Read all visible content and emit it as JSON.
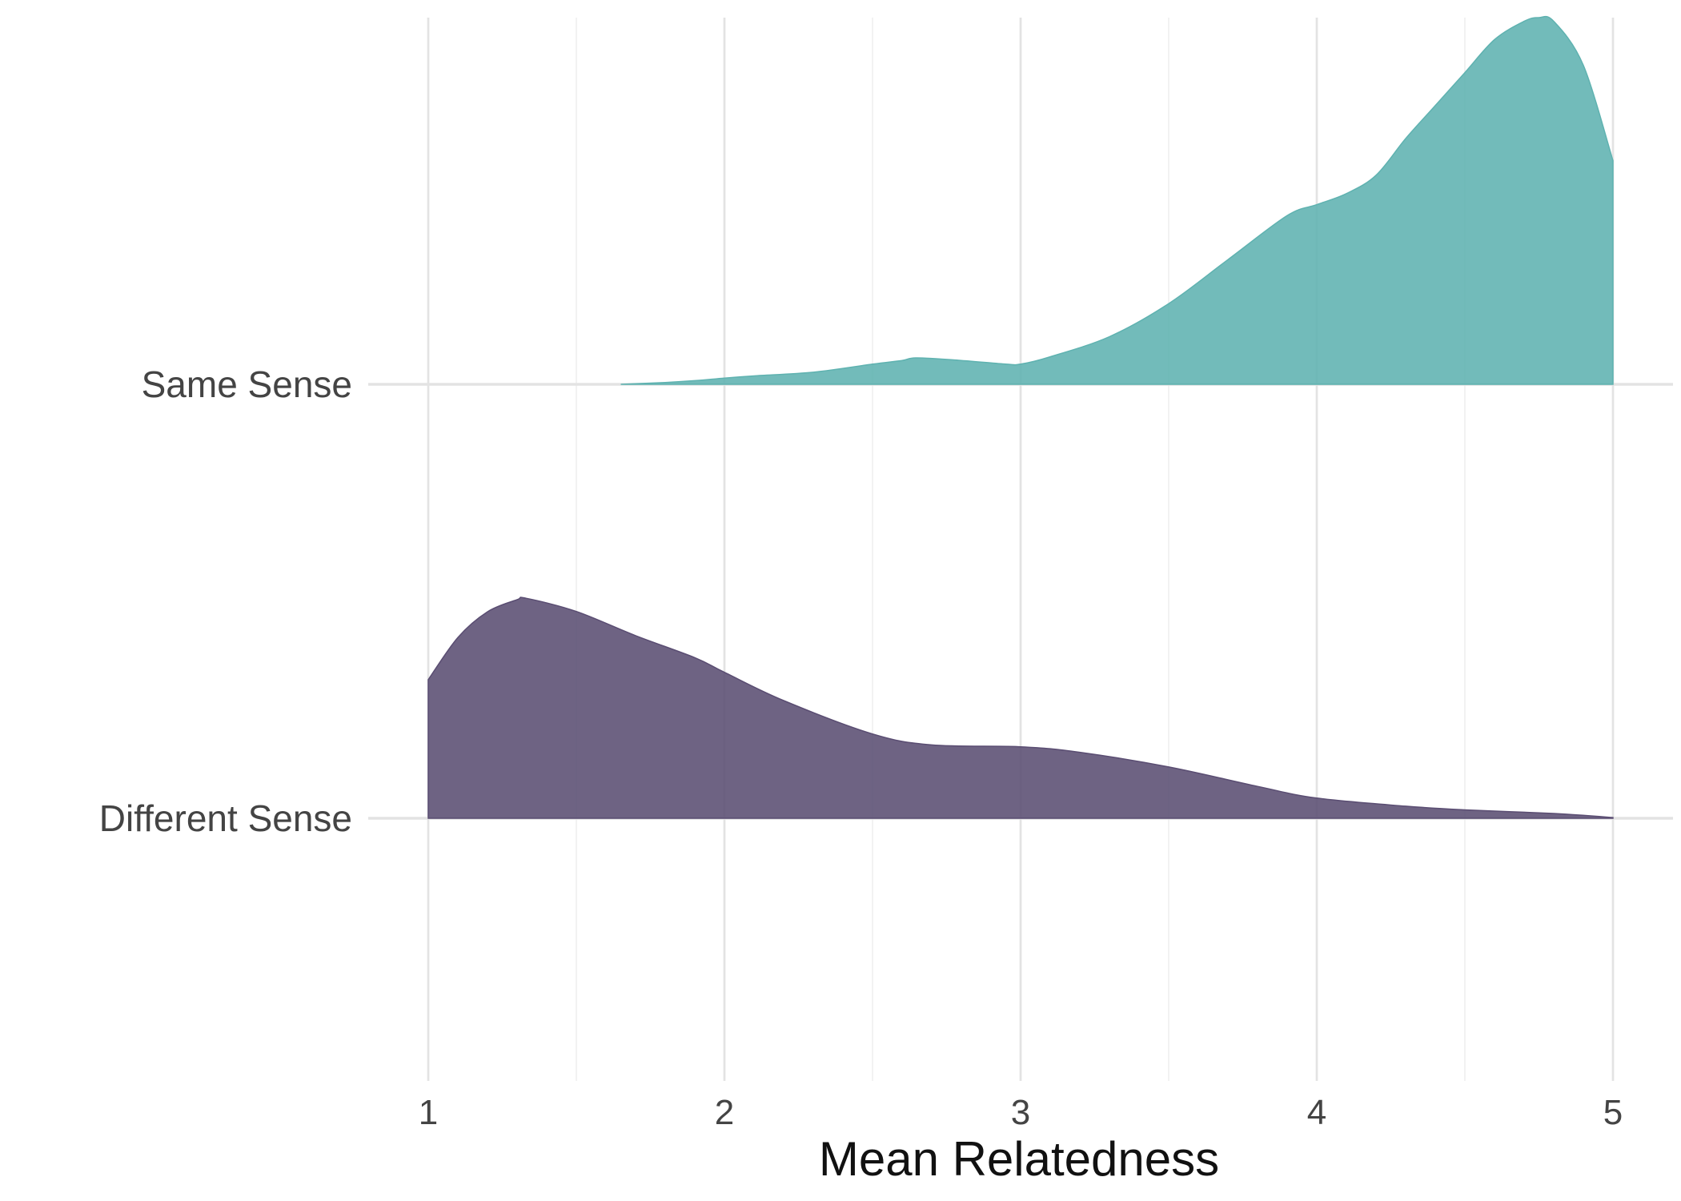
{
  "chart_data": {
    "type": "area",
    "title": "",
    "xlabel": "Mean Relatedness",
    "ylabel": "",
    "xlim": [
      1,
      5
    ],
    "x_ticks": [
      "1",
      "2",
      "3",
      "4",
      "5"
    ],
    "grid": true,
    "legend": "none",
    "series": [
      {
        "name": "Same Sense",
        "color": "#5FB2B0",
        "density_max_relative": 1.0,
        "x": [
          1.65,
          1.8,
          1.9,
          2.0,
          2.1,
          2.3,
          2.5,
          2.6,
          2.65,
          2.8,
          2.95,
          3.0,
          3.1,
          3.3,
          3.5,
          3.7,
          3.9,
          4.0,
          4.1,
          4.2,
          4.3,
          4.4,
          4.5,
          4.6,
          4.7,
          4.75,
          4.8,
          4.9,
          5.0
        ],
        "values": [
          0.0,
          0.005,
          0.01,
          0.017,
          0.023,
          0.033,
          0.055,
          0.065,
          0.072,
          0.065,
          0.055,
          0.055,
          0.075,
          0.13,
          0.22,
          0.34,
          0.46,
          0.49,
          0.52,
          0.57,
          0.67,
          0.76,
          0.85,
          0.94,
          0.99,
          1.0,
          0.99,
          0.87,
          0.61
        ]
      },
      {
        "name": "Different Sense",
        "color": "#5A4D72",
        "density_max_relative": 0.6,
        "x": [
          1.0,
          1.1,
          1.2,
          1.3,
          1.33,
          1.5,
          1.7,
          1.9,
          2.0,
          2.2,
          2.5,
          2.7,
          3.0,
          3.2,
          3.5,
          3.8,
          4.0,
          4.3,
          4.5,
          4.8,
          5.0
        ],
        "values": [
          0.378,
          0.493,
          0.563,
          0.596,
          0.6,
          0.564,
          0.498,
          0.438,
          0.398,
          0.321,
          0.23,
          0.2,
          0.195,
          0.18,
          0.14,
          0.087,
          0.055,
          0.033,
          0.023,
          0.013,
          0.002
        ]
      }
    ]
  }
}
